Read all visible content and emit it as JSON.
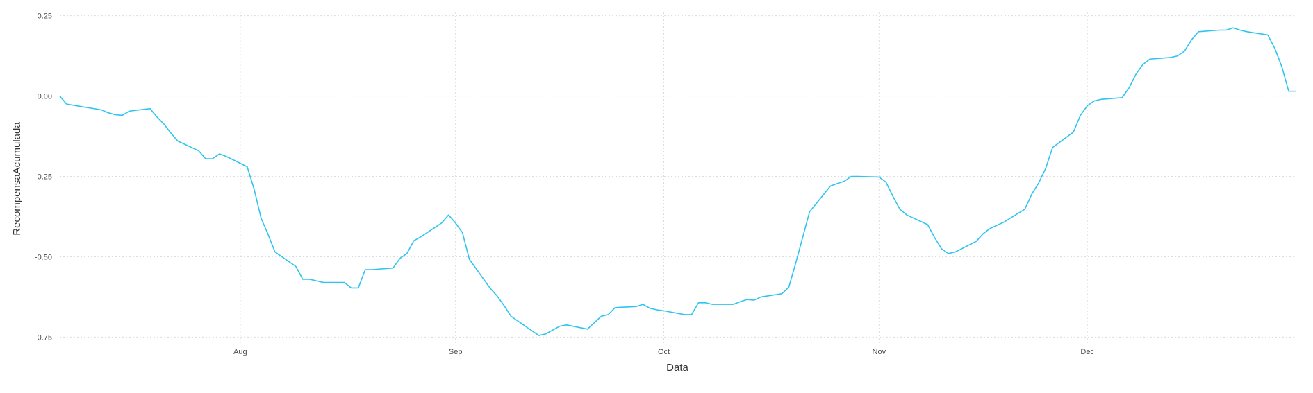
{
  "chart_data": {
    "type": "line",
    "title": "",
    "xlabel": "Data",
    "ylabel": "RecompensaAcumulada",
    "x_type": "date",
    "xlim": [
      "2021-07-06",
      "2021-12-31"
    ],
    "ylim": [
      -0.775,
      0.26
    ],
    "grid": true,
    "legend": "none",
    "x_ticks": [
      {
        "value": "2021-08-01",
        "label": "Aug"
      },
      {
        "value": "2021-09-01",
        "label": "Sep"
      },
      {
        "value": "2021-10-01",
        "label": "Oct"
      },
      {
        "value": "2021-11-01",
        "label": "Nov"
      },
      {
        "value": "2021-12-01",
        "label": "Dec"
      }
    ],
    "y_ticks": [
      {
        "value": 0.25,
        "label": "0.25"
      },
      {
        "value": 0.0,
        "label": "0.00"
      },
      {
        "value": -0.25,
        "label": "-0.25"
      },
      {
        "value": -0.5,
        "label": "-0.50"
      },
      {
        "value": -0.75,
        "label": "-0.75"
      }
    ],
    "colors": {
      "line": "#2ec4f0",
      "grid": "#dcdcdc",
      "text": "#4d4d4d"
    },
    "series": [
      {
        "x": [
          "2021-07-06",
          "2021-07-07",
          "2021-07-12",
          "2021-07-13",
          "2021-07-14",
          "2021-07-15",
          "2021-07-16",
          "2021-07-19",
          "2021-07-20",
          "2021-07-21",
          "2021-07-22",
          "2021-07-23",
          "2021-07-26",
          "2021-07-27",
          "2021-07-28",
          "2021-07-29",
          "2021-07-30",
          "2021-08-02",
          "2021-08-03",
          "2021-08-04",
          "2021-08-05",
          "2021-08-06",
          "2021-08-09",
          "2021-08-10",
          "2021-08-11",
          "2021-08-12",
          "2021-08-13",
          "2021-08-16",
          "2021-08-17",
          "2021-08-18",
          "2021-08-19",
          "2021-08-20",
          "2021-08-23",
          "2021-08-24",
          "2021-08-25",
          "2021-08-26",
          "2021-08-27",
          "2021-08-30",
          "2021-08-31",
          "2021-09-01",
          "2021-09-02",
          "2021-09-03",
          "2021-09-06",
          "2021-09-07",
          "2021-09-08",
          "2021-09-09",
          "2021-09-10",
          "2021-09-13",
          "2021-09-14",
          "2021-09-15",
          "2021-09-16",
          "2021-09-17",
          "2021-09-20",
          "2021-09-21",
          "2021-09-22",
          "2021-09-23",
          "2021-09-24",
          "2021-09-27",
          "2021-09-28",
          "2021-09-29",
          "2021-09-30",
          "2021-10-01",
          "2021-10-04",
          "2021-10-05",
          "2021-10-06",
          "2021-10-07",
          "2021-10-08",
          "2021-10-11",
          "2021-10-12",
          "2021-10-13",
          "2021-10-14",
          "2021-10-15",
          "2021-10-18",
          "2021-10-19",
          "2021-10-20",
          "2021-10-21",
          "2021-10-22",
          "2021-10-25",
          "2021-10-26",
          "2021-10-27",
          "2021-10-28",
          "2021-10-29",
          "2021-11-01",
          "2021-11-02",
          "2021-11-03",
          "2021-11-04",
          "2021-11-05",
          "2021-11-08",
          "2021-11-09",
          "2021-11-10",
          "2021-11-11",
          "2021-11-12",
          "2021-11-15",
          "2021-11-16",
          "2021-11-17",
          "2021-11-18",
          "2021-11-19",
          "2021-11-22",
          "2021-11-23",
          "2021-11-24",
          "2021-11-25",
          "2021-11-26",
          "2021-11-29",
          "2021-11-30",
          "2021-12-01",
          "2021-12-02",
          "2021-12-03",
          "2021-12-06",
          "2021-12-07",
          "2021-12-08",
          "2021-12-09",
          "2021-12-10",
          "2021-12-13",
          "2021-12-14",
          "2021-12-15",
          "2021-12-16",
          "2021-12-17",
          "2021-12-20",
          "2021-12-21",
          "2021-12-22",
          "2021-12-23",
          "2021-12-24",
          "2021-12-27",
          "2021-12-28",
          "2021-12-29",
          "2021-12-30",
          "2021-12-31"
        ],
        "y": [
          0.0,
          -0.025,
          -0.043,
          -0.052,
          -0.058,
          -0.06,
          -0.047,
          -0.039,
          -0.065,
          -0.087,
          -0.115,
          -0.14,
          -0.17,
          -0.195,
          -0.195,
          -0.18,
          -0.188,
          -0.22,
          -0.29,
          -0.38,
          -0.43,
          -0.485,
          -0.53,
          -0.57,
          -0.57,
          -0.575,
          -0.58,
          -0.58,
          -0.597,
          -0.597,
          -0.54,
          -0.54,
          -0.535,
          -0.505,
          -0.49,
          -0.45,
          -0.438,
          -0.395,
          -0.37,
          -0.395,
          -0.425,
          -0.508,
          -0.598,
          -0.622,
          -0.652,
          -0.685,
          -0.7,
          -0.745,
          -0.74,
          -0.728,
          -0.716,
          -0.712,
          -0.725,
          -0.705,
          -0.685,
          -0.68,
          -0.658,
          -0.655,
          -0.648,
          -0.66,
          -0.665,
          -0.668,
          -0.68,
          -0.68,
          -0.643,
          -0.643,
          -0.648,
          -0.648,
          -0.64,
          -0.633,
          -0.635,
          -0.625,
          -0.615,
          -0.595,
          -0.52,
          -0.44,
          -0.36,
          -0.28,
          -0.272,
          -0.265,
          -0.25,
          -0.25,
          -0.252,
          -0.268,
          -0.312,
          -0.352,
          -0.37,
          -0.4,
          -0.44,
          -0.475,
          -0.49,
          -0.485,
          -0.452,
          -0.428,
          -0.412,
          -0.402,
          -0.392,
          -0.352,
          -0.305,
          -0.27,
          -0.225,
          -0.16,
          -0.112,
          -0.06,
          -0.03,
          -0.015,
          -0.01,
          -0.005,
          0.025,
          0.068,
          0.098,
          0.115,
          0.12,
          0.125,
          0.14,
          0.175,
          0.2,
          0.205,
          0.205,
          0.212,
          0.205,
          0.2,
          0.19,
          0.148,
          0.092,
          0.015,
          0.015
        ]
      }
    ]
  }
}
